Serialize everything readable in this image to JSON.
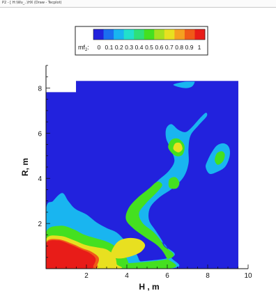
{
  "window": {
    "title_strip": "P2 - [ H:\\Wu_..\\HX  (Draw - Tecplot)"
  },
  "chart_data": {
    "type": "heatmap",
    "xlabel": "H , m",
    "ylabel": "R, m",
    "xlim": [
      0,
      10
    ],
    "ylim": [
      0,
      9
    ],
    "x_ticks": [
      2,
      4,
      6,
      8,
      10
    ],
    "y_ticks": [
      2,
      4,
      6,
      8
    ],
    "domain": {
      "x_max": 9.5,
      "y_max": 8.3,
      "notch_x": 1.5,
      "notch_y": 7.8
    },
    "colorbar": {
      "label": "mf",
      "label_sub": "2",
      "ticks": [
        "0",
        "0.1",
        "0.2",
        "0.3",
        "0.4",
        "0.5",
        "0.6",
        "0.7",
        "0.8",
        "0.9",
        "1"
      ],
      "colors": [
        "#2222dd",
        "#1b6ff0",
        "#19b5f0",
        "#22e0cc",
        "#2ee07a",
        "#44e020",
        "#a6e020",
        "#e8e020",
        "#f5a020",
        "#f05a18",
        "#e81c18"
      ]
    },
    "field": {
      "background_level": 0.0,
      "layers": [
        {
          "level": 0.2,
          "blobs": [
            {
              "pts": [
                [
                  0,
                  0
                ],
                [
                  6.1,
                  0
                ],
                [
                  6.2,
                  0.5
                ],
                [
                  5.9,
                  1.05
                ],
                [
                  5.3,
                  1.45
                ],
                [
                  4.75,
                  1.9
                ],
                [
                  4.5,
                  2.5
                ],
                [
                  4.7,
                  3.05
                ],
                [
                  5.15,
                  3.55
                ],
                [
                  5.6,
                  3.95
                ],
                [
                  6.05,
                  4.3
                ],
                [
                  6.35,
                  4.75
                ],
                [
                  6.2,
                  5.25
                ],
                [
                  5.95,
                  5.75
                ],
                [
                  5.95,
                  6.2
                ],
                [
                  6.2,
                  6.4
                ],
                [
                  6.55,
                  6.15
                ],
                [
                  6.9,
                  6.05
                ],
                [
                  7.2,
                  6.25
                ],
                [
                  7.6,
                  6.65
                ],
                [
                  7.9,
                  6.9
                ],
                [
                  7.95,
                  6.75
                ],
                [
                  7.55,
                  6.35
                ],
                [
                  7.15,
                  5.9
                ],
                [
                  7.05,
                  5.3
                ],
                [
                  7.05,
                  4.65
                ],
                [
                  6.8,
                  4.05
                ],
                [
                  6.25,
                  3.55
                ],
                [
                  5.6,
                  3.15
                ],
                [
                  5.15,
                  2.7
                ],
                [
                  5.1,
                  2.15
                ],
                [
                  5.45,
                  1.65
                ],
                [
                  5.85,
                  1.05
                ],
                [
                  5.95,
                  0.45
                ]
              ]
            },
            {
              "pts": [
                [
                  0,
                  0
                ],
                [
                  0,
                  2.6
                ],
                [
                  0.35,
                  3.0
                ],
                [
                  0.8,
                  3.35
                ],
                [
                  1.1,
                  3.0
                ],
                [
                  1.45,
                  2.65
                ],
                [
                  2.0,
                  2.4
                ],
                [
                  2.5,
                  2.05
                ],
                [
                  3.0,
                  1.8
                ],
                [
                  3.5,
                  1.6
                ],
                [
                  3.9,
                  1.25
                ],
                [
                  4.3,
                  0.9
                ],
                [
                  4.6,
                  0.4
                ],
                [
                  4.6,
                  0
                ]
              ]
            },
            {
              "pts": [
                [
                  8.1,
                  4.2
                ],
                [
                  8.5,
                  4.3
                ],
                [
                  8.85,
                  4.5
                ],
                [
                  9.05,
                  4.85
                ],
                [
                  9.1,
                  5.2
                ],
                [
                  9.0,
                  5.45
                ],
                [
                  8.75,
                  5.55
                ],
                [
                  8.45,
                  5.45
                ],
                [
                  8.2,
                  5.15
                ],
                [
                  8.0,
                  4.8
                ],
                [
                  7.9,
                  4.5
                ]
              ]
            },
            {
              "pts": [
                [
                  6.3,
                  8.15
                ],
                [
                  6.8,
                  8.0
                ],
                [
                  7.2,
                  8.05
                ],
                [
                  7.35,
                  8.3
                ],
                [
                  7.0,
                  8.3
                ]
              ]
            }
          ]
        },
        {
          "level": 0.5,
          "blobs": [
            {
              "pts": [
                [
                  0,
                  0
                ],
                [
                  6.0,
                  0
                ],
                [
                  5.95,
                  0.5
                ],
                [
                  5.55,
                  1.0
                ],
                [
                  4.9,
                  1.4
                ],
                [
                  4.3,
                  1.8
                ],
                [
                  3.95,
                  2.2
                ],
                [
                  4.1,
                  2.7
                ],
                [
                  4.55,
                  3.15
                ],
                [
                  5.1,
                  3.55
                ],
                [
                  5.5,
                  3.85
                ],
                [
                  5.75,
                  3.7
                ],
                [
                  5.45,
                  3.35
                ],
                [
                  4.95,
                  2.9
                ],
                [
                  4.6,
                  2.45
                ],
                [
                  4.8,
                  2.0
                ],
                [
                  5.35,
                  1.6
                ],
                [
                  5.8,
                  1.05
                ],
                [
                  5.9,
                  0.4
                ]
              ]
            },
            {
              "pts": [
                [
                  0,
                  0
                ],
                [
                  0,
                  1.6
                ],
                [
                  0.7,
                  1.9
                ],
                [
                  1.35,
                  1.75
                ],
                [
                  1.9,
                  1.5
                ],
                [
                  2.45,
                  1.35
                ],
                [
                  3.0,
                  1.2
                ],
                [
                  3.5,
                  0.95
                ],
                [
                  3.9,
                  0.6
                ],
                [
                  4.1,
                  0.2
                ],
                [
                  4.1,
                  0
                ]
              ]
            },
            {
              "pts": [
                [
                  6.05,
                  5.35
                ],
                [
                  6.4,
                  5.0
                ],
                [
                  6.75,
                  5.05
                ],
                [
                  6.85,
                  5.45
                ],
                [
                  6.55,
                  5.75
                ],
                [
                  6.2,
                  5.7
                ]
              ]
            },
            {
              "pts": [
                [
                  8.5,
                  4.6
                ],
                [
                  8.75,
                  4.75
                ],
                [
                  8.85,
                  5.05
                ],
                [
                  8.7,
                  5.2
                ],
                [
                  8.45,
                  5.1
                ],
                [
                  8.35,
                  4.8
                ]
              ]
            },
            {
              "pts": [
                [
                  6.1,
                  3.6
                ],
                [
                  6.45,
                  3.55
                ],
                [
                  6.6,
                  3.8
                ],
                [
                  6.4,
                  4.05
                ],
                [
                  6.1,
                  3.95
                ]
              ]
            }
          ]
        },
        {
          "level": 0.7,
          "blobs": [
            {
              "pts": [
                [
                  0,
                  0
                ],
                [
                  0,
                  1.3
                ],
                [
                  0.7,
                  1.45
                ],
                [
                  1.4,
                  1.25
                ],
                [
                  1.95,
                  1.05
                ],
                [
                  2.5,
                  0.95
                ],
                [
                  3.0,
                  0.85
                ],
                [
                  3.4,
                  0.55
                ],
                [
                  3.5,
                  0.2
                ],
                [
                  3.5,
                  0
                ]
              ]
            },
            {
              "pts": [
                [
                  3.2,
                  0.6
                ],
                [
                  3.6,
                  0.45
                ],
                [
                  4.2,
                  0.55
                ],
                [
                  4.7,
                  0.75
                ],
                [
                  4.9,
                  1.05
                ],
                [
                  4.6,
                  1.3
                ],
                [
                  4.0,
                  1.35
                ],
                [
                  3.5,
                  1.15
                ]
              ]
            },
            {
              "pts": [
                [
                  6.3,
                  5.3
                ],
                [
                  6.55,
                  5.15
                ],
                [
                  6.75,
                  5.3
                ],
                [
                  6.65,
                  5.55
                ],
                [
                  6.4,
                  5.55
                ]
              ]
            }
          ]
        },
        {
          "level": 0.9,
          "blobs": [
            {
              "pts": [
                [
                  0,
                  0
                ],
                [
                  0,
                  1.15
                ],
                [
                  0.6,
                  1.3
                ],
                [
                  1.3,
                  1.1
                ],
                [
                  1.8,
                  0.9
                ],
                [
                  2.25,
                  0.75
                ],
                [
                  2.6,
                  0.5
                ],
                [
                  2.55,
                  0.2
                ],
                [
                  2.3,
                  0
                ]
              ]
            }
          ]
        },
        {
          "level": 1.0,
          "blobs": [
            {
              "pts": [
                [
                  0,
                  0
                ],
                [
                  0,
                  1.1
                ],
                [
                  0.6,
                  1.25
                ],
                [
                  1.25,
                  1.05
                ],
                [
                  1.75,
                  0.85
                ],
                [
                  2.15,
                  0.7
                ],
                [
                  2.45,
                  0.45
                ],
                [
                  2.35,
                  0.15
                ],
                [
                  2.1,
                  0
                ]
              ]
            }
          ]
        }
      ]
    }
  }
}
